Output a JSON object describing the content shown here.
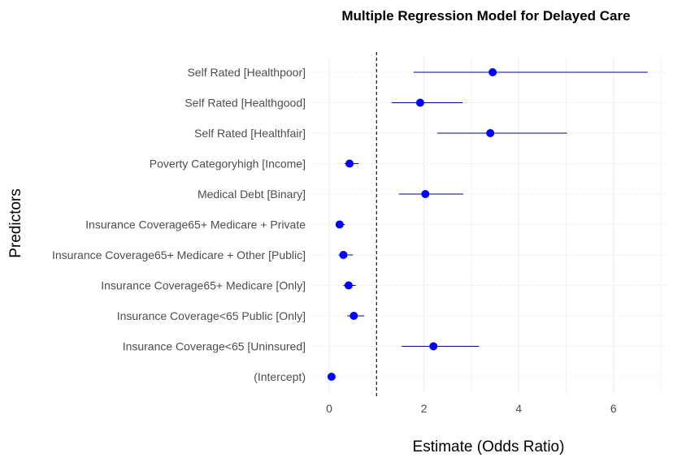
{
  "chart_data": {
    "type": "dot-whisker",
    "title": "Multiple Regression Model for Delayed Care",
    "xlabel": "Estimate (Odds Ratio)",
    "ylabel": "Predictors",
    "xlim": [
      -0.2,
      7.1
    ],
    "xticks": [
      "0",
      "2",
      "4",
      "6"
    ],
    "xtick_values": [
      0,
      2,
      4,
      6
    ],
    "reference_line": 1,
    "grid": true,
    "colors": {
      "point": "#0000ff",
      "line": "#00008b",
      "grid": "#ebebeb",
      "text": "#4d4d4d"
    },
    "predictors": [
      {
        "label": "Self Rated [Healthpoor]",
        "estimate": 3.45,
        "low": 1.78,
        "high": 6.72
      },
      {
        "label": "Self Rated [Healthgood]",
        "estimate": 1.92,
        "low": 1.32,
        "high": 2.82
      },
      {
        "label": "Self Rated [Healthfair]",
        "estimate": 3.4,
        "low": 2.28,
        "high": 5.02
      },
      {
        "label": "Poverty Categoryhigh [Income]",
        "estimate": 0.43,
        "low": 0.32,
        "high": 0.62
      },
      {
        "label": "Medical Debt [Binary]",
        "estimate": 2.03,
        "low": 1.47,
        "high": 2.83
      },
      {
        "label": "Insurance Coverage65+ Medicare + Private",
        "estimate": 0.22,
        "low": 0.15,
        "high": 0.33
      },
      {
        "label": "Insurance Coverage65+ Medicare + Other [Public]",
        "estimate": 0.3,
        "low": 0.2,
        "high": 0.5
      },
      {
        "label": "Insurance Coverage65+ Medicare [Only]",
        "estimate": 0.41,
        "low": 0.3,
        "high": 0.56
      },
      {
        "label": "Insurance Coverage<65 Public [Only]",
        "estimate": 0.52,
        "low": 0.38,
        "high": 0.74
      },
      {
        "label": "Insurance Coverage<65 [Uninsured]",
        "estimate": 2.2,
        "low": 1.53,
        "high": 3.16
      },
      {
        "label": "(Intercept)",
        "estimate": 0.05,
        "low": 0.03,
        "high": 0.08
      }
    ]
  }
}
